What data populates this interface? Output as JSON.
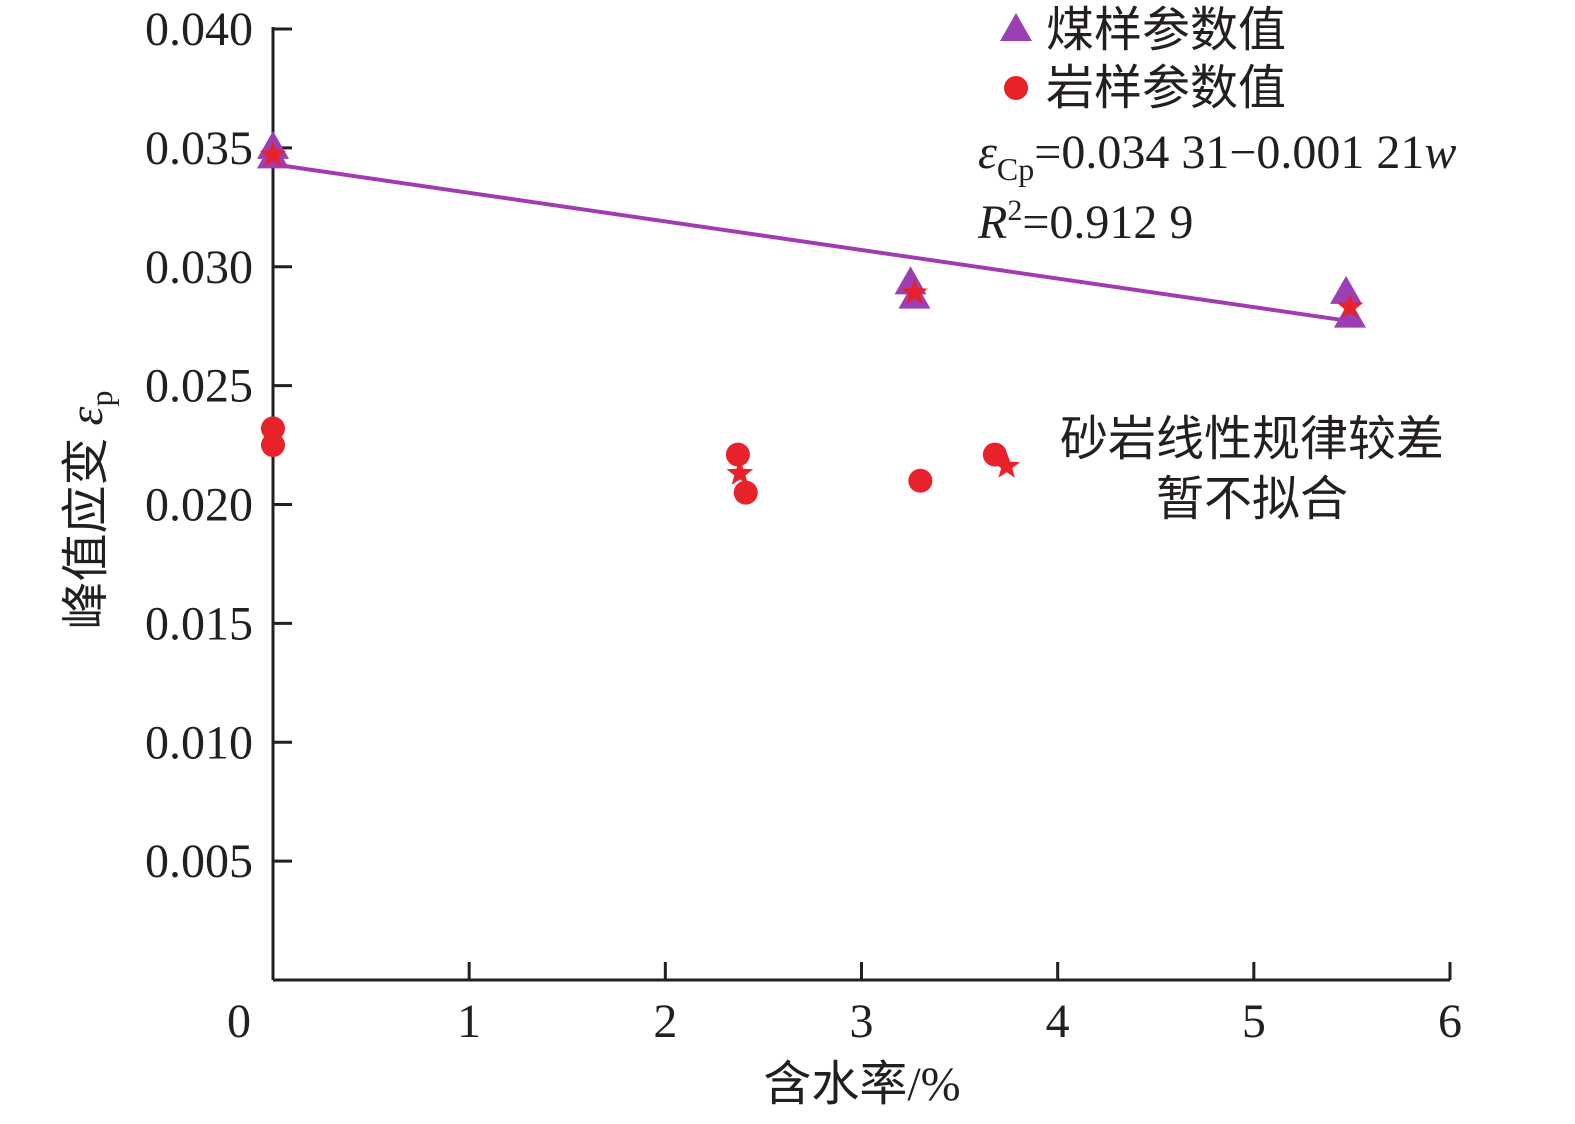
{
  "chart_data": {
    "type": "scatter",
    "xlabel": "含水率/%",
    "ylabel": {
      "text": "峰值应变 ",
      "symbol": "ε",
      "subscript": "p"
    },
    "xlim": [
      0,
      6
    ],
    "xticks": [
      0,
      1,
      2,
      3,
      4,
      5,
      6
    ],
    "ylim": [
      0,
      0.04
    ],
    "yticks": [
      {
        "value": 0.005,
        "label": "0.005"
      },
      {
        "value": 0.01,
        "label": "0.010"
      },
      {
        "value": 0.015,
        "label": "0.015"
      },
      {
        "value": 0.02,
        "label": "0.020"
      },
      {
        "value": 0.025,
        "label": "0.025"
      },
      {
        "value": 0.03,
        "label": "0.030"
      },
      {
        "value": 0.035,
        "label": "0.035"
      },
      {
        "value": 0.04,
        "label": "0.040"
      }
    ],
    "legend": "upper right",
    "series": [
      {
        "name": "煤样参数值",
        "color": "#9b3fb5",
        "marker": "triangle",
        "x": [
          0,
          0,
          3.25,
          3.27,
          5.47,
          5.49
        ],
        "values": [
          0.035,
          0.0346,
          0.0293,
          0.0287,
          0.0289,
          0.0279
        ]
      },
      {
        "name": "岩样参数值",
        "color": "#e8222a",
        "marker": "circle",
        "x": [
          0,
          0,
          2.37,
          2.41,
          3.3,
          3.68
        ],
        "values": [
          0.0232,
          0.0225,
          0.0221,
          0.0205,
          0.021,
          0.0221
        ]
      },
      {
        "color": "#a03cb0",
        "marker": "line",
        "x": [
          0,
          5.5
        ],
        "values": [
          0.03431,
          0.0277
        ]
      },
      {
        "color": "#e8222a",
        "marker": "star",
        "x": [
          0,
          3.27,
          5.49,
          2.38,
          3.74
        ],
        "values": [
          0.0347,
          0.0289,
          0.0283,
          0.0213,
          0.0216
        ]
      }
    ],
    "annotations": {
      "equation": {
        "symbol": "ε",
        "subscript": "Cp",
        "text": "=0.034 31−0.001 21",
        "variable": "w"
      },
      "r2": {
        "symbol": "R",
        "superscript": "2",
        "text": "=0.912 9"
      },
      "note": [
        "砂岩线性规律较差",
        "暂不拟合"
      ]
    }
  }
}
